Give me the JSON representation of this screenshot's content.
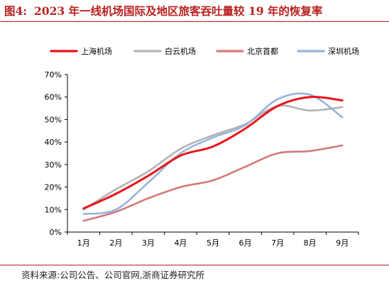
{
  "header": {
    "figure_label": "图4:",
    "title": "2023 年一线机场国际及地区旅客吞吐量较 19 年的恢复率"
  },
  "source": "资料来源:公司公告、公司官网,浙商证券研究所",
  "colors": {
    "accent": "#b8211f",
    "axis": "#000000"
  },
  "chart_data": {
    "type": "line",
    "title": "2023 年一线机场国际及地区旅客吞吐量较 19 年的恢复率",
    "xlabel": "",
    "ylabel": "",
    "categories": [
      "1月",
      "2月",
      "3月",
      "4月",
      "5月",
      "6月",
      "7月",
      "8月",
      "9月"
    ],
    "ylim": [
      0,
      70
    ],
    "yticks": [
      0,
      10,
      20,
      30,
      40,
      50,
      60,
      70
    ],
    "ytick_labels": [
      "0%",
      "10%",
      "20%",
      "30%",
      "40%",
      "50%",
      "60%",
      "70%"
    ],
    "grid": false,
    "legend_position": "top",
    "series": [
      {
        "name": "上海机场",
        "color": "#e8141b",
        "width": 3.0,
        "values": [
          10.5,
          17,
          25,
          34,
          38,
          46,
          56,
          60,
          58.5
        ]
      },
      {
        "name": "白云机场",
        "color": "#b3b3b3",
        "width": 2.6,
        "values": [
          10,
          19,
          27,
          37,
          43,
          48,
          56,
          54,
          55.5
        ]
      },
      {
        "name": "北京首都",
        "color": "#d27a7a",
        "width": 2.6,
        "values": [
          5,
          9,
          15,
          20,
          23,
          29,
          35,
          36,
          38.5
        ]
      },
      {
        "name": "深圳机场",
        "color": "#97b4d9",
        "width": 2.6,
        "values": [
          8,
          10,
          22,
          35,
          42,
          47.5,
          59,
          61,
          51
        ]
      }
    ]
  }
}
